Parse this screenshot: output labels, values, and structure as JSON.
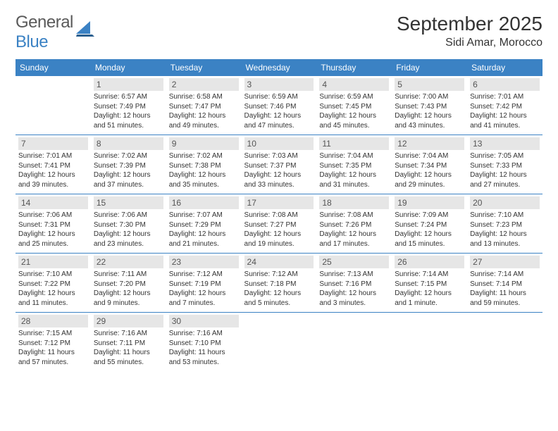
{
  "logo": {
    "word1": "General",
    "word2": "Blue"
  },
  "title": "September 2025",
  "location": "Sidi Amar, Morocco",
  "colors": {
    "accent": "#3b82c4",
    "daynum_bg": "#e6e6e6",
    "text": "#333333"
  },
  "dayHeaders": [
    "Sunday",
    "Monday",
    "Tuesday",
    "Wednesday",
    "Thursday",
    "Friday",
    "Saturday"
  ],
  "weeks": [
    [
      null,
      {
        "n": "1",
        "sr": "Sunrise: 6:57 AM",
        "ss": "Sunset: 7:49 PM",
        "dl": "Daylight: 12 hours and 51 minutes."
      },
      {
        "n": "2",
        "sr": "Sunrise: 6:58 AM",
        "ss": "Sunset: 7:47 PM",
        "dl": "Daylight: 12 hours and 49 minutes."
      },
      {
        "n": "3",
        "sr": "Sunrise: 6:59 AM",
        "ss": "Sunset: 7:46 PM",
        "dl": "Daylight: 12 hours and 47 minutes."
      },
      {
        "n": "4",
        "sr": "Sunrise: 6:59 AM",
        "ss": "Sunset: 7:45 PM",
        "dl": "Daylight: 12 hours and 45 minutes."
      },
      {
        "n": "5",
        "sr": "Sunrise: 7:00 AM",
        "ss": "Sunset: 7:43 PM",
        "dl": "Daylight: 12 hours and 43 minutes."
      },
      {
        "n": "6",
        "sr": "Sunrise: 7:01 AM",
        "ss": "Sunset: 7:42 PM",
        "dl": "Daylight: 12 hours and 41 minutes."
      }
    ],
    [
      {
        "n": "7",
        "sr": "Sunrise: 7:01 AM",
        "ss": "Sunset: 7:41 PM",
        "dl": "Daylight: 12 hours and 39 minutes."
      },
      {
        "n": "8",
        "sr": "Sunrise: 7:02 AM",
        "ss": "Sunset: 7:39 PM",
        "dl": "Daylight: 12 hours and 37 minutes."
      },
      {
        "n": "9",
        "sr": "Sunrise: 7:02 AM",
        "ss": "Sunset: 7:38 PM",
        "dl": "Daylight: 12 hours and 35 minutes."
      },
      {
        "n": "10",
        "sr": "Sunrise: 7:03 AM",
        "ss": "Sunset: 7:37 PM",
        "dl": "Daylight: 12 hours and 33 minutes."
      },
      {
        "n": "11",
        "sr": "Sunrise: 7:04 AM",
        "ss": "Sunset: 7:35 PM",
        "dl": "Daylight: 12 hours and 31 minutes."
      },
      {
        "n": "12",
        "sr": "Sunrise: 7:04 AM",
        "ss": "Sunset: 7:34 PM",
        "dl": "Daylight: 12 hours and 29 minutes."
      },
      {
        "n": "13",
        "sr": "Sunrise: 7:05 AM",
        "ss": "Sunset: 7:33 PM",
        "dl": "Daylight: 12 hours and 27 minutes."
      }
    ],
    [
      {
        "n": "14",
        "sr": "Sunrise: 7:06 AM",
        "ss": "Sunset: 7:31 PM",
        "dl": "Daylight: 12 hours and 25 minutes."
      },
      {
        "n": "15",
        "sr": "Sunrise: 7:06 AM",
        "ss": "Sunset: 7:30 PM",
        "dl": "Daylight: 12 hours and 23 minutes."
      },
      {
        "n": "16",
        "sr": "Sunrise: 7:07 AM",
        "ss": "Sunset: 7:29 PM",
        "dl": "Daylight: 12 hours and 21 minutes."
      },
      {
        "n": "17",
        "sr": "Sunrise: 7:08 AM",
        "ss": "Sunset: 7:27 PM",
        "dl": "Daylight: 12 hours and 19 minutes."
      },
      {
        "n": "18",
        "sr": "Sunrise: 7:08 AM",
        "ss": "Sunset: 7:26 PM",
        "dl": "Daylight: 12 hours and 17 minutes."
      },
      {
        "n": "19",
        "sr": "Sunrise: 7:09 AM",
        "ss": "Sunset: 7:24 PM",
        "dl": "Daylight: 12 hours and 15 minutes."
      },
      {
        "n": "20",
        "sr": "Sunrise: 7:10 AM",
        "ss": "Sunset: 7:23 PM",
        "dl": "Daylight: 12 hours and 13 minutes."
      }
    ],
    [
      {
        "n": "21",
        "sr": "Sunrise: 7:10 AM",
        "ss": "Sunset: 7:22 PM",
        "dl": "Daylight: 12 hours and 11 minutes."
      },
      {
        "n": "22",
        "sr": "Sunrise: 7:11 AM",
        "ss": "Sunset: 7:20 PM",
        "dl": "Daylight: 12 hours and 9 minutes."
      },
      {
        "n": "23",
        "sr": "Sunrise: 7:12 AM",
        "ss": "Sunset: 7:19 PM",
        "dl": "Daylight: 12 hours and 7 minutes."
      },
      {
        "n": "24",
        "sr": "Sunrise: 7:12 AM",
        "ss": "Sunset: 7:18 PM",
        "dl": "Daylight: 12 hours and 5 minutes."
      },
      {
        "n": "25",
        "sr": "Sunrise: 7:13 AM",
        "ss": "Sunset: 7:16 PM",
        "dl": "Daylight: 12 hours and 3 minutes."
      },
      {
        "n": "26",
        "sr": "Sunrise: 7:14 AM",
        "ss": "Sunset: 7:15 PM",
        "dl": "Daylight: 12 hours and 1 minute."
      },
      {
        "n": "27",
        "sr": "Sunrise: 7:14 AM",
        "ss": "Sunset: 7:14 PM",
        "dl": "Daylight: 11 hours and 59 minutes."
      }
    ],
    [
      {
        "n": "28",
        "sr": "Sunrise: 7:15 AM",
        "ss": "Sunset: 7:12 PM",
        "dl": "Daylight: 11 hours and 57 minutes."
      },
      {
        "n": "29",
        "sr": "Sunrise: 7:16 AM",
        "ss": "Sunset: 7:11 PM",
        "dl": "Daylight: 11 hours and 55 minutes."
      },
      {
        "n": "30",
        "sr": "Sunrise: 7:16 AM",
        "ss": "Sunset: 7:10 PM",
        "dl": "Daylight: 11 hours and 53 minutes."
      },
      null,
      null,
      null,
      null
    ]
  ]
}
